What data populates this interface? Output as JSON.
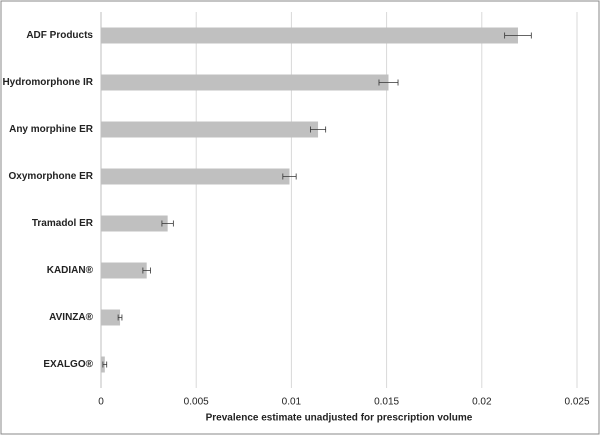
{
  "chart_data": {
    "type": "hbar",
    "categories": [
      "ADF Products",
      "Hydromorphone IR",
      "Any morphine ER",
      "Oxymorphone ER",
      "Tramadol ER",
      "KADIAN®",
      "AVINZA®",
      "EXALGO®"
    ],
    "values": [
      0.0219,
      0.0151,
      0.0114,
      0.0099,
      0.0035,
      0.0024,
      0.001,
      0.0002
    ],
    "errors": [
      0.0007,
      0.0005,
      0.0004,
      0.00035,
      0.0003,
      0.0002,
      0.0001,
      0.0001
    ],
    "color": "#c0c0c0",
    "xlabel": "Prevalence estimate unadjusted for prescription volume",
    "xlim": [
      0,
      0.025
    ],
    "xticks": [
      0,
      0.005,
      0.01,
      0.015,
      0.02,
      0.025
    ],
    "grid": true
  }
}
